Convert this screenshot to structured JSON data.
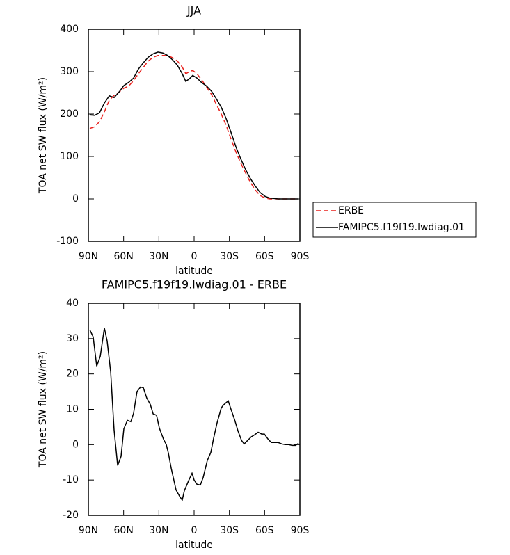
{
  "chart_data": [
    {
      "type": "line",
      "title": "JJA",
      "xlabel": "latitude",
      "ylabel": "TOA net SW flux (W/m²)",
      "x": [
        88.8,
        84.7,
        80.5,
        76.4,
        72.2,
        68.1,
        63.9,
        59.8,
        55.6,
        51.5,
        47.4,
        43.2,
        39.1,
        34.9,
        30.8,
        26.6,
        22.5,
        18.4,
        14.2,
        10.1,
        7.1,
        4.1,
        1.2,
        -2.4,
        -6.5,
        -10.6,
        -14.8,
        -18.9,
        -23.1,
        -27.2,
        -31.4,
        -35.5,
        -39.6,
        -43.8,
        -47.9,
        -52.1,
        -56.2,
        -60.4,
        -64.5,
        -71.6,
        -80.5,
        -88.8
      ],
      "series": [
        {
          "name": "ERBE",
          "color": "#e8201c",
          "linestyle": "dashed",
          "values": [
            166,
            170,
            182,
            205,
            233,
            244,
            252,
            261,
            266,
            279,
            295,
            310,
            325,
            334,
            338,
            338,
            338,
            333,
            325,
            311,
            295,
            300,
            303,
            295,
            280,
            264,
            246,
            223,
            200,
            174,
            141,
            111,
            85,
            61,
            39,
            21,
            8,
            2,
            0,
            0,
            0,
            0
          ]
        },
        {
          "name": "FAMIPC5.f19f19.lwdiag.01",
          "color": "#000000",
          "linestyle": "solid",
          "values": [
            198,
            197,
            203,
            226,
            243,
            239,
            252,
            267,
            275,
            285,
            306,
            321,
            334,
            342,
            346,
            344,
            338,
            328,
            315,
            295,
            277,
            283,
            291,
            285,
            274,
            266,
            254,
            236,
            216,
            190,
            157,
            123,
            95,
            69,
            48,
            30,
            15,
            6,
            2,
            0,
            0,
            0
          ]
        }
      ],
      "xlim": [
        90,
        -90
      ],
      "xticks": [
        {
          "value": 90,
          "label": "90N"
        },
        {
          "value": 60,
          "label": "60N"
        },
        {
          "value": 30,
          "label": "30N"
        },
        0,
        {
          "value": -30,
          "label": "30S"
        },
        {
          "value": -60,
          "label": "60S"
        },
        {
          "value": -90,
          "label": "90S"
        }
      ],
      "ylim": [
        -100,
        400
      ],
      "yticks": [
        -100,
        0,
        100,
        200,
        300,
        400
      ],
      "legend": "right"
    },
    {
      "type": "line",
      "title": "FAMIPC5.f19f19.lwdiag.01 - ERBE",
      "xlabel": "latitude",
      "ylabel": "TOA net SW flux (W/m²)",
      "x": [
        88.8,
        85.9,
        82.9,
        79.9,
        76.4,
        74,
        71,
        68.1,
        65.1,
        62.2,
        59.8,
        56.8,
        53.9,
        51.5,
        48.6,
        45.6,
        43.2,
        40.3,
        37.3,
        34.9,
        32,
        29.6,
        26.1,
        23.7,
        21.9,
        19.5,
        15.4,
        12.4,
        10.1,
        8.3,
        4.7,
        1.8,
        0,
        -2.4,
        -5.3,
        -7.7,
        -11.2,
        -14.2,
        -16.6,
        -19.5,
        -23.1,
        -24.9,
        -29,
        -31.4,
        -34.4,
        -37.3,
        -40.3,
        -42.6,
        -45.6,
        -48.6,
        -51.5,
        -54.5,
        -57.5,
        -59.8,
        -62.8,
        -65.7,
        -68.7,
        -71.6,
        -74.6,
        -77.5,
        -80.5,
        -83.4,
        -86.4,
        -88.8
      ],
      "series": [
        {
          "color": "#000000",
          "linestyle": "solid",
          "values": [
            32.5,
            30.5,
            22.2,
            25,
            33,
            29.3,
            20.5,
            4.1,
            -5.9,
            -3.3,
            4.5,
            6.9,
            6.5,
            8.9,
            15,
            16.3,
            16.1,
            13.2,
            11.4,
            8.7,
            8.3,
            4.7,
            1.6,
            0,
            -2.4,
            -6.7,
            -12.8,
            -14.6,
            -15.7,
            -13,
            -10.2,
            -8.1,
            -10,
            -11.2,
            -11.4,
            -9.3,
            -4.5,
            -2.2,
            1.8,
            6.1,
            10.4,
            11.2,
            12.4,
            10,
            7.1,
            3.9,
            1.2,
            0.2,
            1.2,
            2.2,
            2.8,
            3.5,
            3,
            3,
            1.6,
            0.6,
            0.6,
            0.6,
            0.2,
            0,
            0,
            -0.2,
            -0.2,
            0.4
          ]
        }
      ],
      "xlim": [
        90,
        -90
      ],
      "xticks": [
        {
          "value": 90,
          "label": "90N"
        },
        {
          "value": 60,
          "label": "60N"
        },
        {
          "value": 30,
          "label": "30N"
        },
        0,
        {
          "value": -30,
          "label": "30S"
        },
        {
          "value": -60,
          "label": "60S"
        },
        {
          "value": -90,
          "label": "90S"
        }
      ],
      "ylim": [
        -20,
        40
      ],
      "yticks": [
        -20,
        -10,
        0,
        10,
        20,
        30,
        40
      ]
    }
  ]
}
